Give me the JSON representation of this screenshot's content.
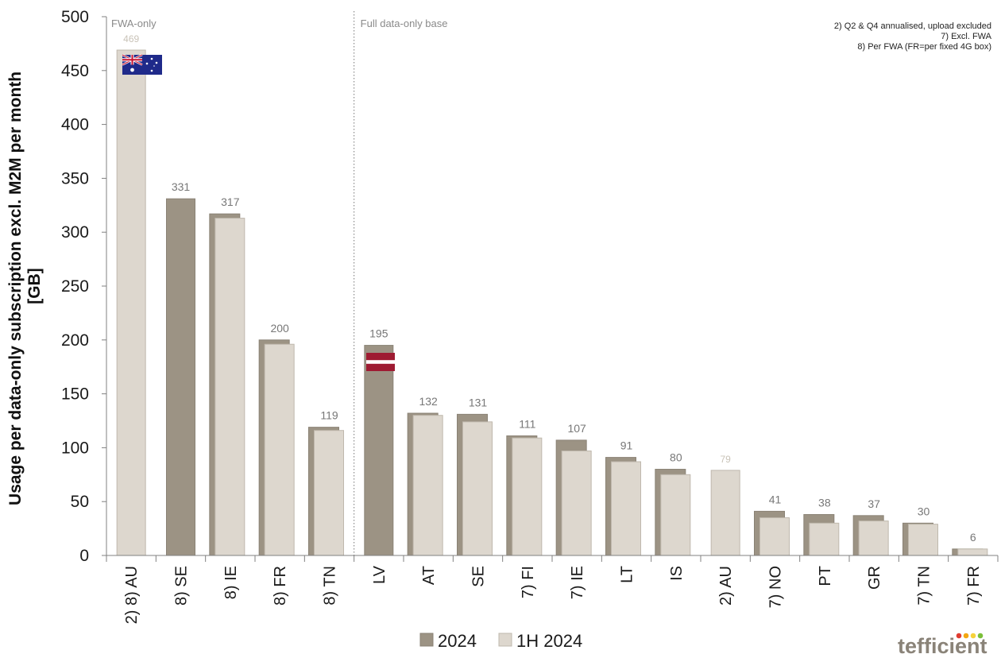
{
  "chart_data": {
    "type": "bar",
    "ylabel": "Usage per data-only subscription excl. M2M per month [GB]",
    "xlabel": "",
    "ylim": [
      0,
      500
    ],
    "yticks": [
      0,
      50,
      100,
      150,
      200,
      250,
      300,
      350,
      400,
      450,
      500
    ],
    "grid": false,
    "legend_position": "bottom-center",
    "categories": [
      "2) 8) AU",
      "8) SE",
      "8) IE",
      "8) FR",
      "8) TN",
      "LV",
      "AT",
      "SE",
      "7) FI",
      "7) IE",
      "LT",
      "IS",
      "2) AU",
      "7) NO",
      "PT",
      "GR",
      "7) TN",
      "7) FR"
    ],
    "series": [
      {
        "name": "2024",
        "color": "#9c9384",
        "values": [
          null,
          331,
          317,
          200,
          119,
          195,
          132,
          131,
          111,
          107,
          91,
          80,
          null,
          41,
          38,
          37,
          30,
          6
        ]
      },
      {
        "name": "1H 2024",
        "color": "#ddd7ce",
        "values": [
          469,
          null,
          313,
          196,
          116,
          null,
          130,
          124,
          109,
          97,
          87,
          75,
          79,
          35,
          30,
          32,
          29,
          6
        ]
      }
    ],
    "data_labels": [
      "469",
      "331",
      "317",
      "200",
      "119",
      "195",
      "132",
      "131",
      "111",
      "107",
      "91",
      "80",
      "79",
      "41",
      "38",
      "37",
      "30",
      "6"
    ],
    "sections": [
      "FWA-only",
      "Full data-only base"
    ],
    "notes": [
      "2) Q2 & Q4 annualised, upload excluded",
      "7) Excl. FWA",
      "8) Per FWA (FR=per fixed 4G box)"
    ],
    "flags": [
      {
        "category": "2) 8) AU",
        "icon": "australia-flag-icon"
      },
      {
        "category": "LV",
        "icon": "latvia-flag-icon"
      }
    ]
  },
  "legend": {
    "items": [
      "2024",
      "1H 2024"
    ]
  },
  "brand": {
    "name": "tefficient"
  },
  "colors": {
    "dark": "#9c9384",
    "light": "#ddd7ce",
    "dark_edge": "#8a8275",
    "light_edge": "#bfb8ad",
    "axis": "#808080"
  }
}
